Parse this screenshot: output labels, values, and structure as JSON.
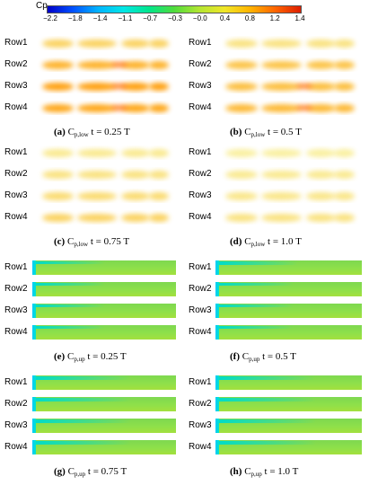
{
  "colorbar": {
    "title": "Cp",
    "ticks": [
      "−2.2",
      "−1.8",
      "−1.4",
      "−1.1",
      "−0.7",
      "−0.3",
      "−0.0",
      "0.4",
      "0.8",
      "1.2",
      "1.4"
    ],
    "range": [
      -2.2,
      1.4
    ],
    "colors": [
      "#0000c8",
      "#0050ff",
      "#00b4ff",
      "#00e6e6",
      "#00e68c",
      "#50dc3c",
      "#b4e632",
      "#f0e628",
      "#ffb400",
      "#ff6400",
      "#dc1e00"
    ]
  },
  "panels": [
    {
      "letter": "(a)",
      "sym": "C",
      "sub": "p,low",
      "time": "t = 0.25 T",
      "type": "low",
      "rows": [
        "Row1",
        "Row2",
        "Row3",
        "Row4"
      ],
      "intensity": [
        0.55,
        0.85,
        1.0,
        0.95
      ]
    },
    {
      "letter": "(b)",
      "sym": "C",
      "sub": "p,low",
      "time": "t = 0.5 T",
      "type": "low",
      "rows": [
        "Row1",
        "Row2",
        "Row3",
        "Row4"
      ],
      "intensity": [
        0.35,
        0.7,
        0.75,
        0.8
      ]
    },
    {
      "letter": "(c)",
      "sym": "C",
      "sub": "p,low",
      "time": "t = 0.75 T",
      "type": "low",
      "rows": [
        "Row1",
        "Row2",
        "Row3",
        "Row4"
      ],
      "intensity": [
        0.25,
        0.35,
        0.45,
        0.55
      ]
    },
    {
      "letter": "(d)",
      "sym": "C",
      "sub": "p,low",
      "time": "t = 1.0 T",
      "type": "low",
      "rows": [
        "Row1",
        "Row2",
        "Row3",
        "Row4"
      ],
      "intensity": [
        0.15,
        0.25,
        0.3,
        0.35
      ]
    },
    {
      "letter": "(e)",
      "sym": "C",
      "sub": "p,up",
      "time": "t = 0.25 T",
      "type": "up",
      "rows": [
        "Row1",
        "Row2",
        "Row3",
        "Row4"
      ],
      "intensity": [
        0.3,
        0.3,
        0.3,
        0.3
      ]
    },
    {
      "letter": "(f)",
      "sym": "C",
      "sub": "p,up",
      "time": "t = 0.5 T",
      "type": "up",
      "rows": [
        "Row1",
        "Row2",
        "Row3",
        "Row4"
      ],
      "intensity": [
        0.4,
        0.35,
        0.35,
        0.35
      ]
    },
    {
      "letter": "(g)",
      "sym": "C",
      "sub": "p,up",
      "time": "t = 0.75 T",
      "type": "up",
      "rows": [
        "Row1",
        "Row2",
        "Row3",
        "Row4"
      ],
      "intensity": [
        0.6,
        0.6,
        0.6,
        0.6
      ]
    },
    {
      "letter": "(h)",
      "sym": "C",
      "sub": "p,up",
      "time": "t = 1.0 T",
      "type": "up",
      "rows": [
        "Row1",
        "Row2",
        "Row3",
        "Row4"
      ],
      "intensity": [
        0.6,
        0.6,
        0.6,
        0.6
      ]
    }
  ]
}
